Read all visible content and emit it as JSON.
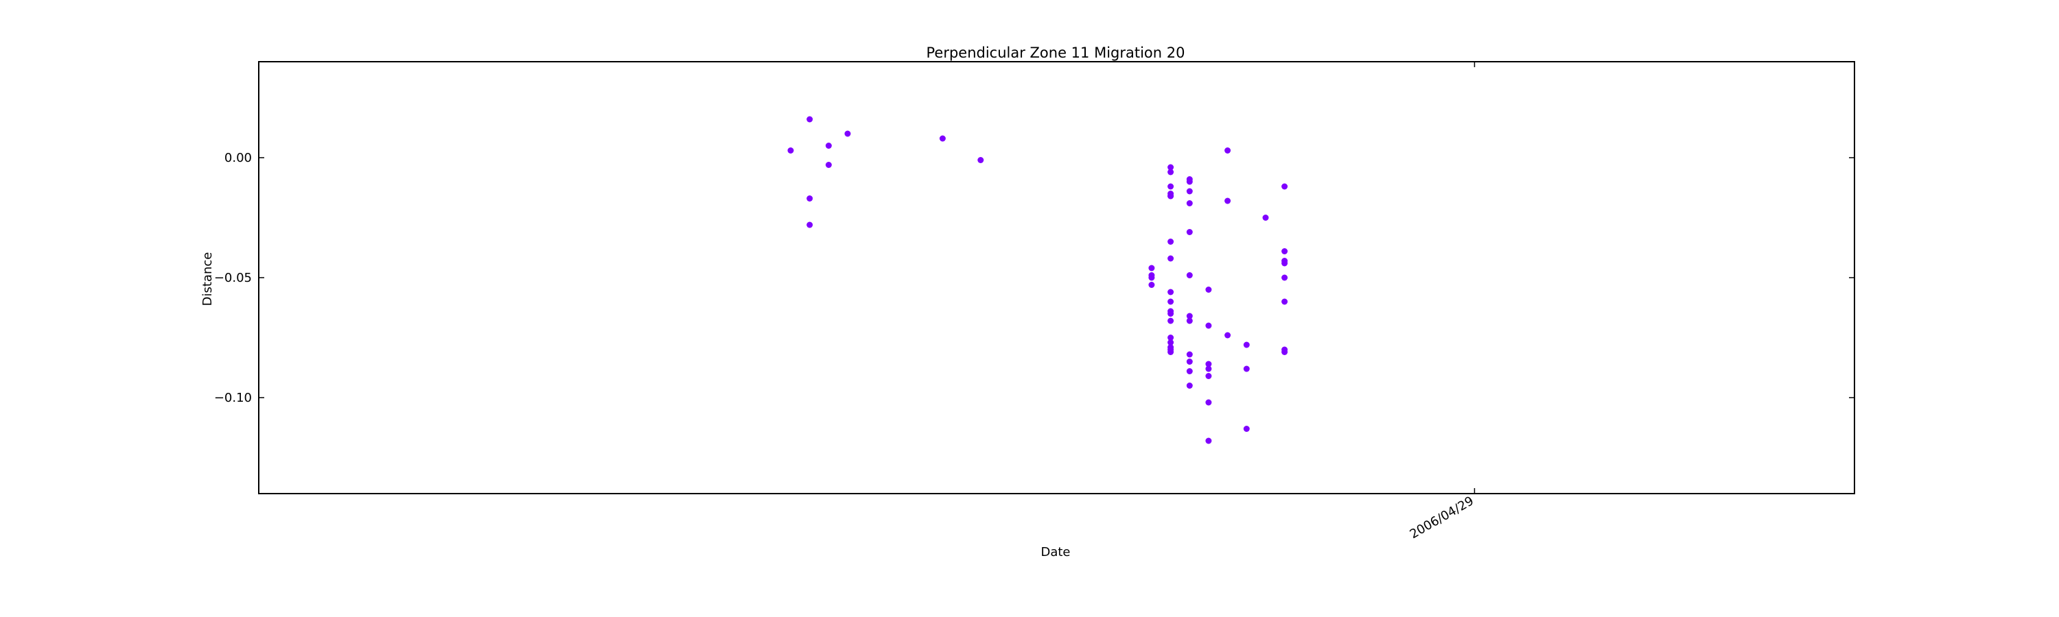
{
  "chart_data": {
    "type": "scatter",
    "title": "Perpendicular Zone 11 Migration 20",
    "xlabel": "Date",
    "ylabel": "Distance",
    "ylim": [
      -0.14,
      0.04
    ],
    "yticks": [
      0.0,
      -0.05,
      -0.1
    ],
    "ytick_labels": [
      "0.00",
      "−0.05",
      "−0.10"
    ],
    "xlim": [
      "2006/02/24",
      "2006/05/19"
    ],
    "xticks": [
      "2006/04/29"
    ],
    "xtick_labels": [
      "2006/04/29"
    ],
    "grid": false,
    "legend": "none",
    "marker_color": "#7f00ff",
    "series": [
      {
        "points": [
          [
            "2006/03/24",
            0.003
          ],
          [
            "2006/03/25",
            0.016
          ],
          [
            "2006/03/25",
            -0.017
          ],
          [
            "2006/03/25",
            -0.028
          ],
          [
            "2006/03/26",
            0.005
          ],
          [
            "2006/03/26",
            -0.003
          ],
          [
            "2006/03/27",
            0.01
          ],
          [
            "2006/04/01",
            0.008
          ],
          [
            "2006/04/03",
            -0.001
          ],
          [
            "2006/04/12",
            -0.046
          ],
          [
            "2006/04/12",
            -0.049
          ],
          [
            "2006/04/12",
            -0.05
          ],
          [
            "2006/04/12",
            -0.053
          ],
          [
            "2006/04/13",
            -0.012
          ],
          [
            "2006/04/13",
            -0.016
          ],
          [
            "2006/04/13",
            -0.064
          ],
          [
            "2006/04/13",
            -0.065
          ],
          [
            "2006/04/13",
            -0.06
          ],
          [
            "2006/04/13",
            -0.08
          ],
          [
            "2006/04/13",
            -0.081
          ],
          [
            "2006/04/13",
            -0.079
          ],
          [
            "2006/04/13",
            -0.035
          ],
          [
            "2006/04/13",
            -0.015
          ],
          [
            "2006/04/13",
            -0.075
          ],
          [
            "2006/04/13",
            -0.077
          ],
          [
            "2006/04/13",
            -0.068
          ],
          [
            "2006/04/13",
            -0.016
          ],
          [
            "2006/04/13",
            -0.004
          ],
          [
            "2006/04/13",
            -0.042
          ],
          [
            "2006/04/13",
            -0.056
          ],
          [
            "2006/04/13",
            -0.006
          ],
          [
            "2006/04/14",
            -0.019
          ],
          [
            "2006/04/14",
            -0.049
          ],
          [
            "2006/04/14",
            -0.085
          ],
          [
            "2006/04/14",
            -0.082
          ],
          [
            "2006/04/14",
            -0.014
          ],
          [
            "2006/04/14",
            -0.031
          ],
          [
            "2006/04/14",
            -0.009
          ],
          [
            "2006/04/14",
            -0.066
          ],
          [
            "2006/04/14",
            -0.068
          ],
          [
            "2006/04/14",
            -0.01
          ],
          [
            "2006/04/14",
            -0.089
          ],
          [
            "2006/04/14",
            -0.095
          ],
          [
            "2006/04/15",
            -0.086
          ],
          [
            "2006/04/15",
            -0.088
          ],
          [
            "2006/04/15",
            -0.091
          ],
          [
            "2006/04/15",
            -0.055
          ],
          [
            "2006/04/15",
            -0.07
          ],
          [
            "2006/04/15",
            -0.102
          ],
          [
            "2006/04/15",
            -0.118
          ],
          [
            "2006/04/16",
            -0.074
          ],
          [
            "2006/04/16",
            0.003
          ],
          [
            "2006/04/16",
            -0.018
          ],
          [
            "2006/04/17",
            -0.078
          ],
          [
            "2006/04/17",
            -0.088
          ],
          [
            "2006/04/17",
            -0.113
          ],
          [
            "2006/04/18",
            -0.025
          ],
          [
            "2006/04/19",
            -0.039
          ],
          [
            "2006/04/19",
            -0.044
          ],
          [
            "2006/04/19",
            -0.08
          ],
          [
            "2006/04/19",
            -0.081
          ],
          [
            "2006/04/19",
            -0.06
          ],
          [
            "2006/04/19",
            -0.012
          ],
          [
            "2006/04/19",
            -0.043
          ],
          [
            "2006/04/19",
            -0.05
          ]
        ]
      }
    ]
  }
}
